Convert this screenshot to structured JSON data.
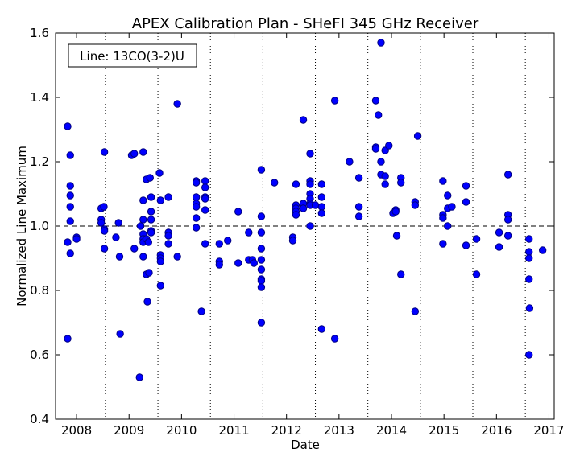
{
  "chart_data": {
    "type": "scatter",
    "title": "APEX Calibration Plan - SHeFI 345 GHz Receiver",
    "xlabel": "Date",
    "ylabel": "Normalized Line Maximum",
    "annotation": "Line: 13CO(3-2)U",
    "xlim": [
      2007.6,
      2017.1
    ],
    "ylim": [
      0.4,
      1.6
    ],
    "xticks": [
      2008,
      2009,
      2010,
      2011,
      2012,
      2013,
      2014,
      2015,
      2016,
      2017
    ],
    "xtick_labels": [
      "2008",
      "2009",
      "2010",
      "2011",
      "2012",
      "2013",
      "2014",
      "2015",
      "2016",
      "2017"
    ],
    "yticks": [
      0.4,
      0.6,
      0.8,
      1.0,
      1.2,
      1.4,
      1.6
    ],
    "ytick_labels": [
      "0.4",
      "0.6",
      "0.8",
      "1.0",
      "1.2",
      "1.4",
      "1.6"
    ],
    "reference_line": 1.0,
    "vertical_dotted_lines": [
      2008.55,
      2009.55,
      2010.55,
      2011.55,
      2012.55,
      2013.55,
      2014.55,
      2015.55,
      2016.55
    ],
    "marker_color": "#0000ff",
    "marker_edge_color": "#000080",
    "points": [
      [
        2007.83,
        1.31
      ],
      [
        2007.83,
        0.95
      ],
      [
        2007.83,
        0.65
      ],
      [
        2007.88,
        1.22
      ],
      [
        2007.88,
        1.125
      ],
      [
        2007.88,
        1.095
      ],
      [
        2007.88,
        1.06
      ],
      [
        2007.88,
        1.015
      ],
      [
        2007.88,
        0.915
      ],
      [
        2008.0,
        0.965
      ],
      [
        2008.0,
        0.96
      ],
      [
        2008.47,
        1.055
      ],
      [
        2008.47,
        1.02
      ],
      [
        2008.47,
        1.01
      ],
      [
        2008.52,
        1.06
      ],
      [
        2008.53,
        1.23
      ],
      [
        2008.53,
        0.99
      ],
      [
        2008.53,
        0.985
      ],
      [
        2008.53,
        0.93
      ],
      [
        2008.75,
        0.965
      ],
      [
        2008.8,
        1.01
      ],
      [
        2008.82,
        0.905
      ],
      [
        2008.83,
        0.665
      ],
      [
        2009.05,
        1.22
      ],
      [
        2009.1,
        1.225
      ],
      [
        2009.1,
        0.93
      ],
      [
        2009.2,
        0.53
      ],
      [
        2009.22,
        1.0
      ],
      [
        2009.27,
        1.23
      ],
      [
        2009.27,
        1.08
      ],
      [
        2009.27,
        1.02
      ],
      [
        2009.27,
        0.975
      ],
      [
        2009.27,
        0.96
      ],
      [
        2009.27,
        0.95
      ],
      [
        2009.27,
        0.905
      ],
      [
        2009.33,
        1.145
      ],
      [
        2009.33,
        0.96
      ],
      [
        2009.33,
        0.85
      ],
      [
        2009.35,
        0.765
      ],
      [
        2009.37,
        0.95
      ],
      [
        2009.38,
        0.855
      ],
      [
        2009.4,
        1.15
      ],
      [
        2009.42,
        1.09
      ],
      [
        2009.42,
        1.045
      ],
      [
        2009.42,
        1.02
      ],
      [
        2009.42,
        0.985
      ],
      [
        2009.42,
        0.98
      ],
      [
        2009.58,
        1.165
      ],
      [
        2009.6,
        1.08
      ],
      [
        2009.6,
        0.91
      ],
      [
        2009.6,
        0.9
      ],
      [
        2009.6,
        0.89
      ],
      [
        2009.6,
        0.815
      ],
      [
        2009.75,
        1.09
      ],
      [
        2009.75,
        0.98
      ],
      [
        2009.75,
        0.97
      ],
      [
        2009.75,
        0.945
      ],
      [
        2009.92,
        1.38
      ],
      [
        2009.92,
        0.905
      ],
      [
        2010.28,
        1.14
      ],
      [
        2010.28,
        1.135
      ],
      [
        2010.28,
        1.09
      ],
      [
        2010.28,
        1.07
      ],
      [
        2010.28,
        1.06
      ],
      [
        2010.28,
        1.025
      ],
      [
        2010.28,
        0.995
      ],
      [
        2010.38,
        0.735
      ],
      [
        2010.45,
        1.14
      ],
      [
        2010.45,
        1.12
      ],
      [
        2010.45,
        1.09
      ],
      [
        2010.45,
        1.085
      ],
      [
        2010.45,
        1.05
      ],
      [
        2010.45,
        0.945
      ],
      [
        2010.72,
        0.945
      ],
      [
        2010.72,
        0.89
      ],
      [
        2010.72,
        0.88
      ],
      [
        2010.88,
        0.955
      ],
      [
        2011.08,
        1.045
      ],
      [
        2011.08,
        0.885
      ],
      [
        2011.28,
        0.98
      ],
      [
        2011.28,
        0.895
      ],
      [
        2011.35,
        0.895
      ],
      [
        2011.38,
        0.885
      ],
      [
        2011.52,
        1.175
      ],
      [
        2011.52,
        1.03
      ],
      [
        2011.52,
        0.98
      ],
      [
        2011.52,
        0.93
      ],
      [
        2011.52,
        0.895
      ],
      [
        2011.52,
        0.865
      ],
      [
        2011.52,
        0.835
      ],
      [
        2011.52,
        0.83
      ],
      [
        2011.52,
        0.81
      ],
      [
        2011.52,
        0.7
      ],
      [
        2011.77,
        1.135
      ],
      [
        2012.12,
        0.965
      ],
      [
        2012.12,
        0.955
      ],
      [
        2012.18,
        1.13
      ],
      [
        2012.18,
        1.065
      ],
      [
        2012.18,
        1.055
      ],
      [
        2012.18,
        1.045
      ],
      [
        2012.18,
        1.035
      ],
      [
        2012.32,
        1.33
      ],
      [
        2012.32,
        1.07
      ],
      [
        2012.32,
        1.055
      ],
      [
        2012.45,
        1.225
      ],
      [
        2012.45,
        1.14
      ],
      [
        2012.45,
        1.13
      ],
      [
        2012.45,
        1.1
      ],
      [
        2012.45,
        1.085
      ],
      [
        2012.45,
        1.07
      ],
      [
        2012.45,
        1.065
      ],
      [
        2012.45,
        1.0
      ],
      [
        2012.55,
        1.065
      ],
      [
        2012.67,
        1.13
      ],
      [
        2012.67,
        1.09
      ],
      [
        2012.67,
        1.06
      ],
      [
        2012.67,
        1.04
      ],
      [
        2012.67,
        0.68
      ],
      [
        2012.92,
        1.39
      ],
      [
        2012.92,
        0.65
      ],
      [
        2013.2,
        1.2
      ],
      [
        2013.38,
        1.15
      ],
      [
        2013.38,
        1.06
      ],
      [
        2013.38,
        1.03
      ],
      [
        2013.7,
        1.39
      ],
      [
        2013.7,
        1.245
      ],
      [
        2013.7,
        1.24
      ],
      [
        2013.75,
        1.345
      ],
      [
        2013.8,
        1.57
      ],
      [
        2013.8,
        1.2
      ],
      [
        2013.8,
        1.16
      ],
      [
        2013.88,
        1.235
      ],
      [
        2013.88,
        1.155
      ],
      [
        2013.88,
        1.13
      ],
      [
        2013.95,
        1.25
      ],
      [
        2014.03,
        1.04
      ],
      [
        2014.08,
        1.05
      ],
      [
        2014.08,
        1.045
      ],
      [
        2014.1,
        0.97
      ],
      [
        2014.18,
        1.15
      ],
      [
        2014.18,
        1.135
      ],
      [
        2014.18,
        0.85
      ],
      [
        2014.45,
        1.075
      ],
      [
        2014.45,
        1.065
      ],
      [
        2014.45,
        0.735
      ],
      [
        2014.5,
        1.28
      ],
      [
        2014.98,
        1.14
      ],
      [
        2014.98,
        1.035
      ],
      [
        2014.98,
        1.025
      ],
      [
        2014.98,
        0.945
      ],
      [
        2015.07,
        1.095
      ],
      [
        2015.07,
        1.055
      ],
      [
        2015.07,
        1.0
      ],
      [
        2015.15,
        1.06
      ],
      [
        2015.42,
        1.125
      ],
      [
        2015.42,
        1.075
      ],
      [
        2015.42,
        0.94
      ],
      [
        2015.62,
        0.96
      ],
      [
        2015.62,
        0.85
      ],
      [
        2016.05,
        0.98
      ],
      [
        2016.05,
        0.935
      ],
      [
        2016.22,
        1.16
      ],
      [
        2016.22,
        1.035
      ],
      [
        2016.22,
        1.02
      ],
      [
        2016.22,
        0.97
      ],
      [
        2016.62,
        0.96
      ],
      [
        2016.62,
        0.92
      ],
      [
        2016.62,
        0.9
      ],
      [
        2016.62,
        0.835
      ],
      [
        2016.63,
        0.745
      ],
      [
        2016.62,
        0.6
      ],
      [
        2016.88,
        0.925
      ]
    ]
  }
}
